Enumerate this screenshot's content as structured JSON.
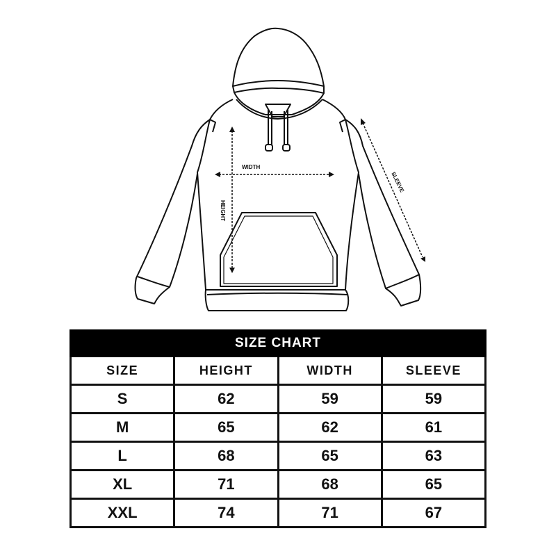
{
  "diagram": {
    "labels": {
      "width": "WIDTH",
      "height": "HEIGHT",
      "sleeve": "SLEEVE"
    }
  },
  "size_chart": {
    "title": "SIZE CHART",
    "columns": [
      "SIZE",
      "HEIGHT",
      "WIDTH",
      "SLEEVE"
    ],
    "rows": [
      [
        "S",
        "62",
        "59",
        "59"
      ],
      [
        "M",
        "65",
        "62",
        "61"
      ],
      [
        "L",
        "68",
        "65",
        "63"
      ],
      [
        "XL",
        "71",
        "68",
        "65"
      ],
      [
        "XXL",
        "74",
        "71",
        "67"
      ]
    ]
  }
}
